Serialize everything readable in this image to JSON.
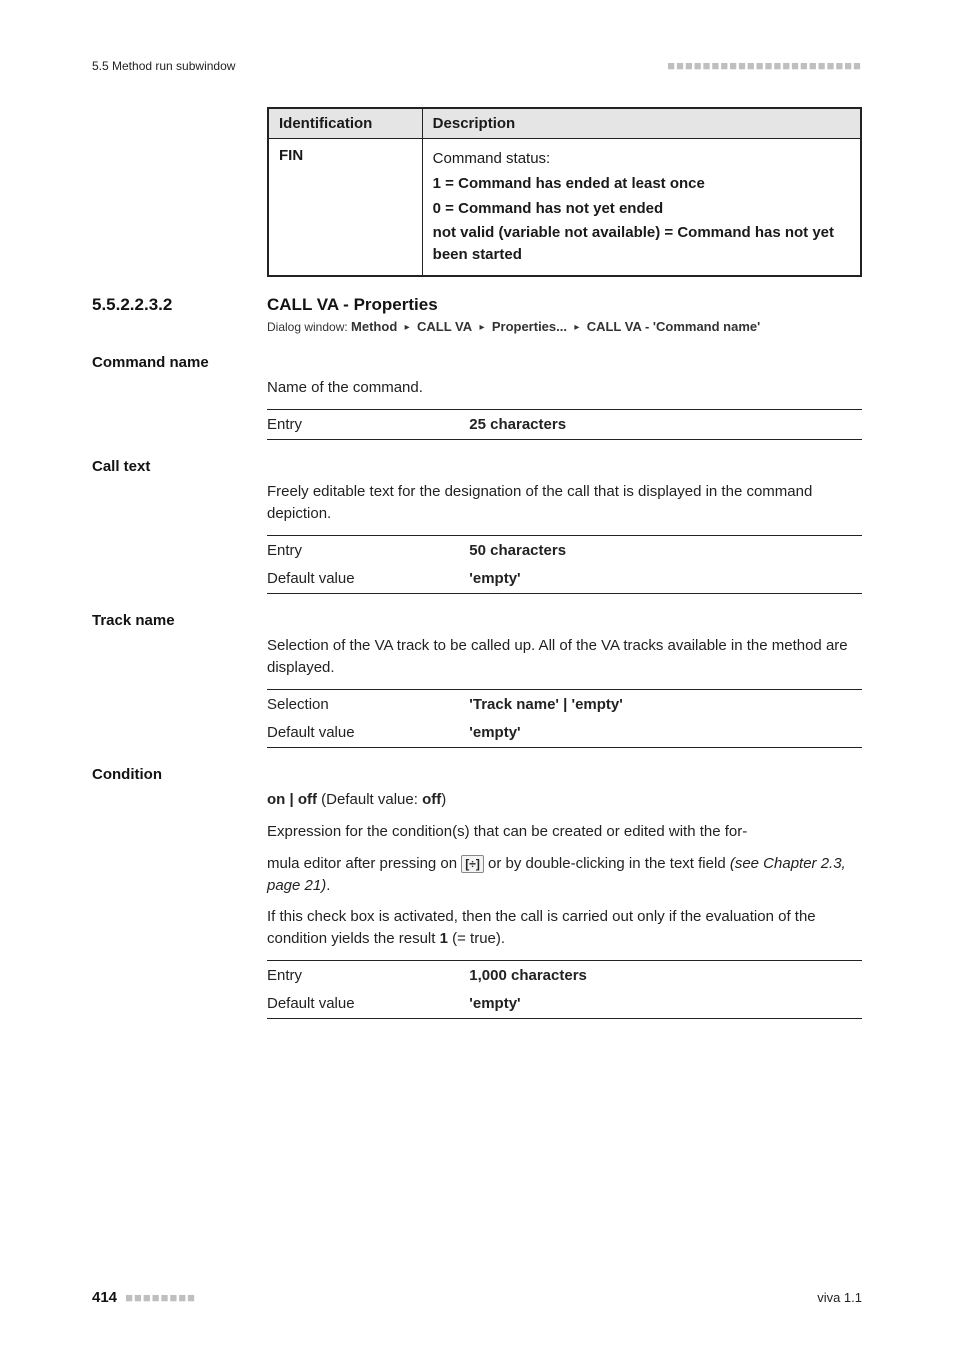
{
  "header": {
    "left": "5.5 Method run subwindow",
    "right_ornament": "■■■■■■■■■■■■■■■■■■■■■■"
  },
  "table1": {
    "headers": [
      "Identification",
      "Description"
    ],
    "rows": [
      {
        "id": "FIN",
        "desc_lines": [
          {
            "text": "Command status:",
            "bold": false
          },
          {
            "text": "1 = Command has ended at least once",
            "bold": true
          },
          {
            "text": "0 = Command has not yet ended",
            "bold": true
          },
          {
            "text": "not valid (variable not available) = Command has not yet been started",
            "bold": true
          }
        ]
      }
    ]
  },
  "section": {
    "number": "5.5.2.2.3.2",
    "title": "CALL VA - Properties"
  },
  "dialog": {
    "prefix": "Dialog window: ",
    "parts": [
      "Method",
      "CALL VA",
      "Properties...",
      "CALL VA - 'Command name'"
    ]
  },
  "fields": [
    {
      "title": "Command name",
      "paragraphs": [
        "Name of the command."
      ],
      "after_paragraphs": [],
      "kv": [
        {
          "k": "Entry",
          "v": "25 characters"
        }
      ]
    },
    {
      "title": "Call text",
      "paragraphs": [
        "Freely editable text for the designation of the call that is displayed in the command depiction."
      ],
      "after_paragraphs": [],
      "kv": [
        {
          "k": "Entry",
          "v": "50 characters"
        },
        {
          "k": "Default value",
          "v": "'empty'"
        }
      ]
    },
    {
      "title": "Track name",
      "paragraphs": [
        "Selection of the VA track to be called up. All of the VA tracks available in the method are displayed."
      ],
      "after_paragraphs": [],
      "kv": [
        {
          "k": "Selection",
          "v": "'Track name' | 'empty'"
        },
        {
          "k": "Default value",
          "v": "'empty'"
        }
      ]
    },
    {
      "title": "Condition",
      "paragraphs": [],
      "condition_line_prefix": "on | off",
      "condition_line_default": " (Default value: ",
      "condition_line_value": "off",
      "condition_line_suffix": ")",
      "after_paragraphs": [
        "Expression for the condition(s) that can be created or edited with the for-",
        "__FX__",
        "If this check box is activated, then the call is carried out only if the evaluation of the condition yields the result __B1__ (= true)."
      ],
      "fx_line_prefix": "mula editor after pressing on ",
      "fx_line_mid": " or by double-clicking in the text field ",
      "fx_line_italic": "(see Chapter 2.3, page 21)",
      "fx_line_end": ".",
      "b1_text": "1",
      "kv": [
        {
          "k": "Entry",
          "v": "1,000 characters"
        },
        {
          "k": "Default value",
          "v": "'empty'"
        }
      ]
    }
  ],
  "footer": {
    "page": "414",
    "dots": "■■■■■■■■",
    "right": "viva 1.1"
  },
  "style": {
    "background": "#ffffff",
    "text": "#1a1a1a",
    "table_header_bg": "#e5e5e5",
    "rule_color": "#222222"
  }
}
